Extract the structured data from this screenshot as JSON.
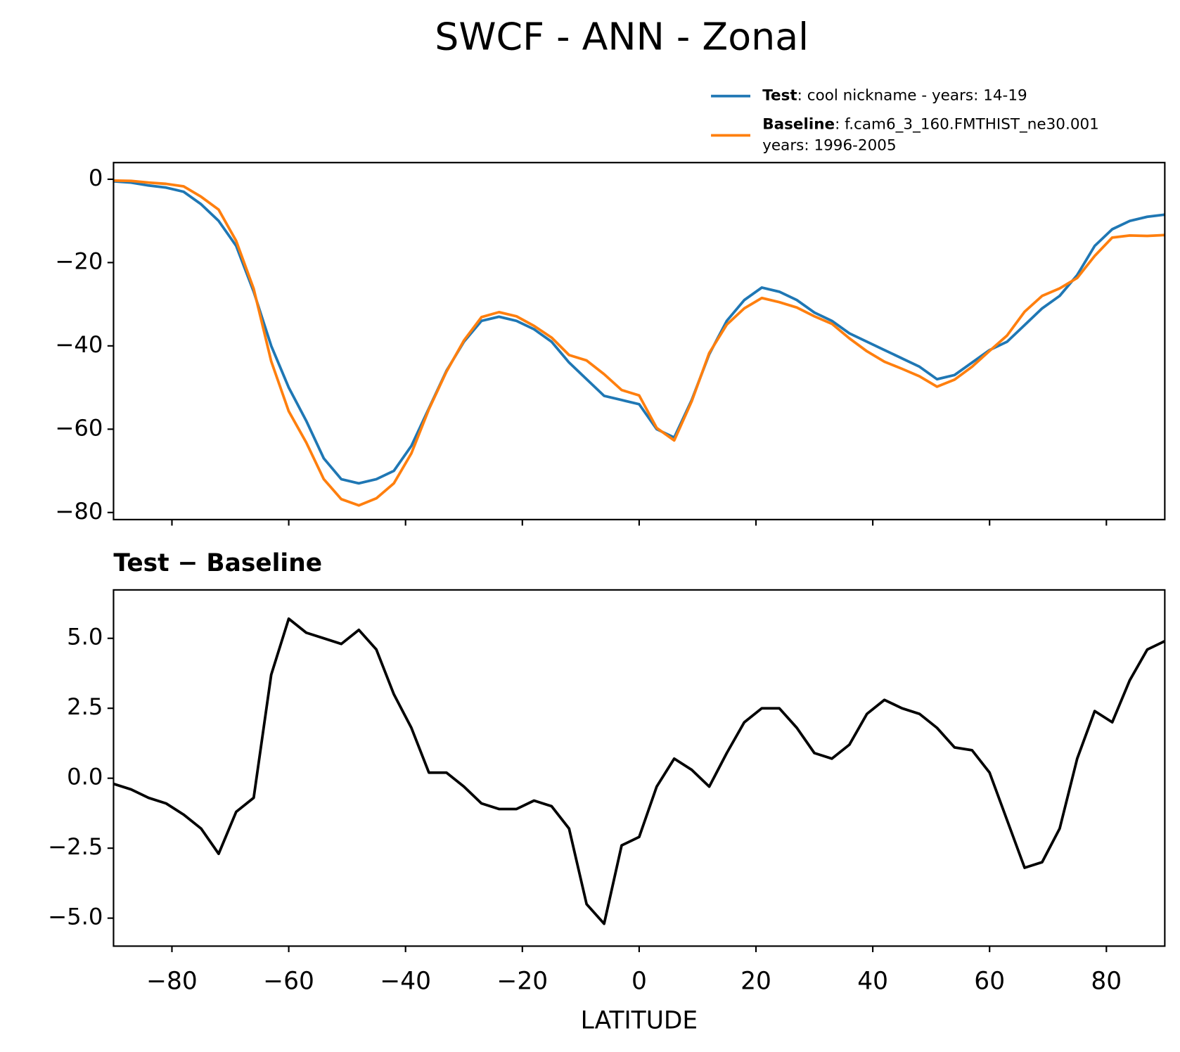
{
  "title": "SWCF - ANN - Zonal",
  "chart_data": [
    {
      "type": "line",
      "legend": "upper right",
      "x": [
        -90,
        -87,
        -84,
        -81,
        -78,
        -75,
        -72,
        -69,
        -66,
        -63,
        -60,
        -57,
        -54,
        -51,
        -48,
        -45,
        -42,
        -39,
        -36,
        -33,
        -30,
        -27,
        -24,
        -21,
        -18,
        -15,
        -12,
        -9,
        -6,
        -3,
        0,
        3,
        6,
        9,
        12,
        15,
        18,
        21,
        24,
        27,
        30,
        33,
        36,
        39,
        42,
        45,
        48,
        51,
        54,
        57,
        60,
        63,
        66,
        69,
        72,
        75,
        78,
        81,
        84,
        87,
        90
      ],
      "series": [
        {
          "name": "Test",
          "description": [
            ": cool nickname - years: 14-19"
          ],
          "color": "#1f77b4",
          "values": [
            -0.5,
            -0.8,
            -1.5,
            -2,
            -3,
            -6,
            -10,
            -16,
            -27,
            -40,
            -50,
            -58,
            -67,
            -72,
            -73,
            -72,
            -70,
            -64,
            -55,
            -46,
            -39,
            -34,
            -33,
            -34,
            -36,
            -39,
            -44,
            -48,
            -52,
            -53,
            -54,
            -60,
            -62,
            -53,
            -42,
            -34,
            -29,
            -26,
            -27,
            -29,
            -32,
            -34,
            -37,
            -39,
            -41,
            -43,
            -45,
            -48,
            -47,
            -44,
            -41,
            -39,
            -35,
            -31,
            -28,
            -23,
            -16,
            -12,
            -10,
            -9,
            -8.5
          ]
        },
        {
          "name": "Baseline",
          "description": [
            ": f.cam6_3_160.FMTHIST_ne30.001",
            "years: 1996-2005"
          ],
          "color": "#ff7f0e",
          "values": [
            -0.3,
            -0.4,
            -0.8,
            -1.1,
            -1.7,
            -4.2,
            -7.3,
            -14.8,
            -26.3,
            -43.7,
            -55.7,
            -63.2,
            -72,
            -76.8,
            -78.3,
            -76.6,
            -73,
            -65.8,
            -55.2,
            -46.2,
            -38.7,
            -33.1,
            -31.9,
            -32.9,
            -35.2,
            -38,
            -42.2,
            -43.5,
            -46.8,
            -50.6,
            -51.9,
            -59.7,
            -62.7,
            -53.3,
            -41.7,
            -34.9,
            -31,
            -28.5,
            -29.5,
            -30.8,
            -32.9,
            -34.7,
            -38.2,
            -41.3,
            -43.8,
            -45.5,
            -47.3,
            -49.8,
            -48.1,
            -45,
            -41.2,
            -37.5,
            -31.8,
            -28,
            -26.2,
            -23.7,
            -18.4,
            -14,
            -13.5,
            -13.6,
            -13.4
          ]
        }
      ],
      "xlim": [
        -90,
        90
      ],
      "xticks": [
        -80,
        -60,
        -40,
        -20,
        0,
        20,
        40,
        60,
        80
      ],
      "ylim": [
        -81.7,
        4
      ],
      "yticks": [
        {
          "value": 0,
          "label": "0"
        },
        {
          "value": -20,
          "label": "−20"
        },
        {
          "value": -40,
          "label": "−40"
        },
        {
          "value": -60,
          "label": "−60"
        },
        {
          "value": -80,
          "label": "−80"
        }
      ]
    },
    {
      "type": "line",
      "title": "Test − Baseline",
      "xlabel": "LATITUDE",
      "x": [
        -90,
        -87,
        -84,
        -81,
        -78,
        -75,
        -72,
        -69,
        -66,
        -63,
        -60,
        -57,
        -54,
        -51,
        -48,
        -45,
        -42,
        -39,
        -36,
        -33,
        -30,
        -27,
        -24,
        -21,
        -18,
        -15,
        -12,
        -9,
        -6,
        -3,
        0,
        3,
        6,
        9,
        12,
        15,
        18,
        21,
        24,
        27,
        30,
        33,
        36,
        39,
        42,
        45,
        48,
        51,
        54,
        57,
        60,
        63,
        66,
        69,
        72,
        75,
        78,
        81,
        84,
        87,
        90
      ],
      "series": [
        {
          "color": "#000000",
          "values": [
            -0.2,
            -0.4,
            -0.7,
            -0.9,
            -1.3,
            -1.8,
            -2.7,
            -1.2,
            -0.7,
            3.7,
            5.7,
            5.2,
            5.0,
            4.8,
            5.3,
            4.6,
            3.0,
            1.8,
            0.2,
            0.2,
            -0.3,
            -0.9,
            -1.1,
            -1.1,
            -0.8,
            -1.0,
            -1.8,
            -4.5,
            -5.2,
            -2.4,
            -2.1,
            -0.3,
            0.7,
            0.3,
            -0.3,
            0.9,
            2.0,
            2.5,
            2.5,
            1.8,
            0.9,
            0.7,
            1.2,
            2.3,
            2.8,
            2.5,
            2.3,
            1.8,
            1.1,
            1.0,
            0.2,
            -1.5,
            -3.2,
            -3.0,
            -1.8,
            0.7,
            2.4,
            2.0,
            3.5,
            4.6,
            4.9
          ]
        }
      ],
      "xlim": [
        -90,
        90
      ],
      "xticks": [
        {
          "value": -80,
          "label": "−80"
        },
        {
          "value": -60,
          "label": "−60"
        },
        {
          "value": -40,
          "label": "−40"
        },
        {
          "value": -20,
          "label": "−20"
        },
        0,
        20,
        40,
        60,
        80
      ],
      "ylim": [
        -6.0,
        6.73
      ],
      "yticks": [
        {
          "value": 5,
          "label": "5.0"
        },
        {
          "value": 2.5,
          "label": "2.5"
        },
        {
          "value": 0,
          "label": "0.0"
        },
        {
          "value": -2.5,
          "label": "−2.5"
        },
        {
          "value": -5,
          "label": "−5.0"
        }
      ]
    }
  ]
}
